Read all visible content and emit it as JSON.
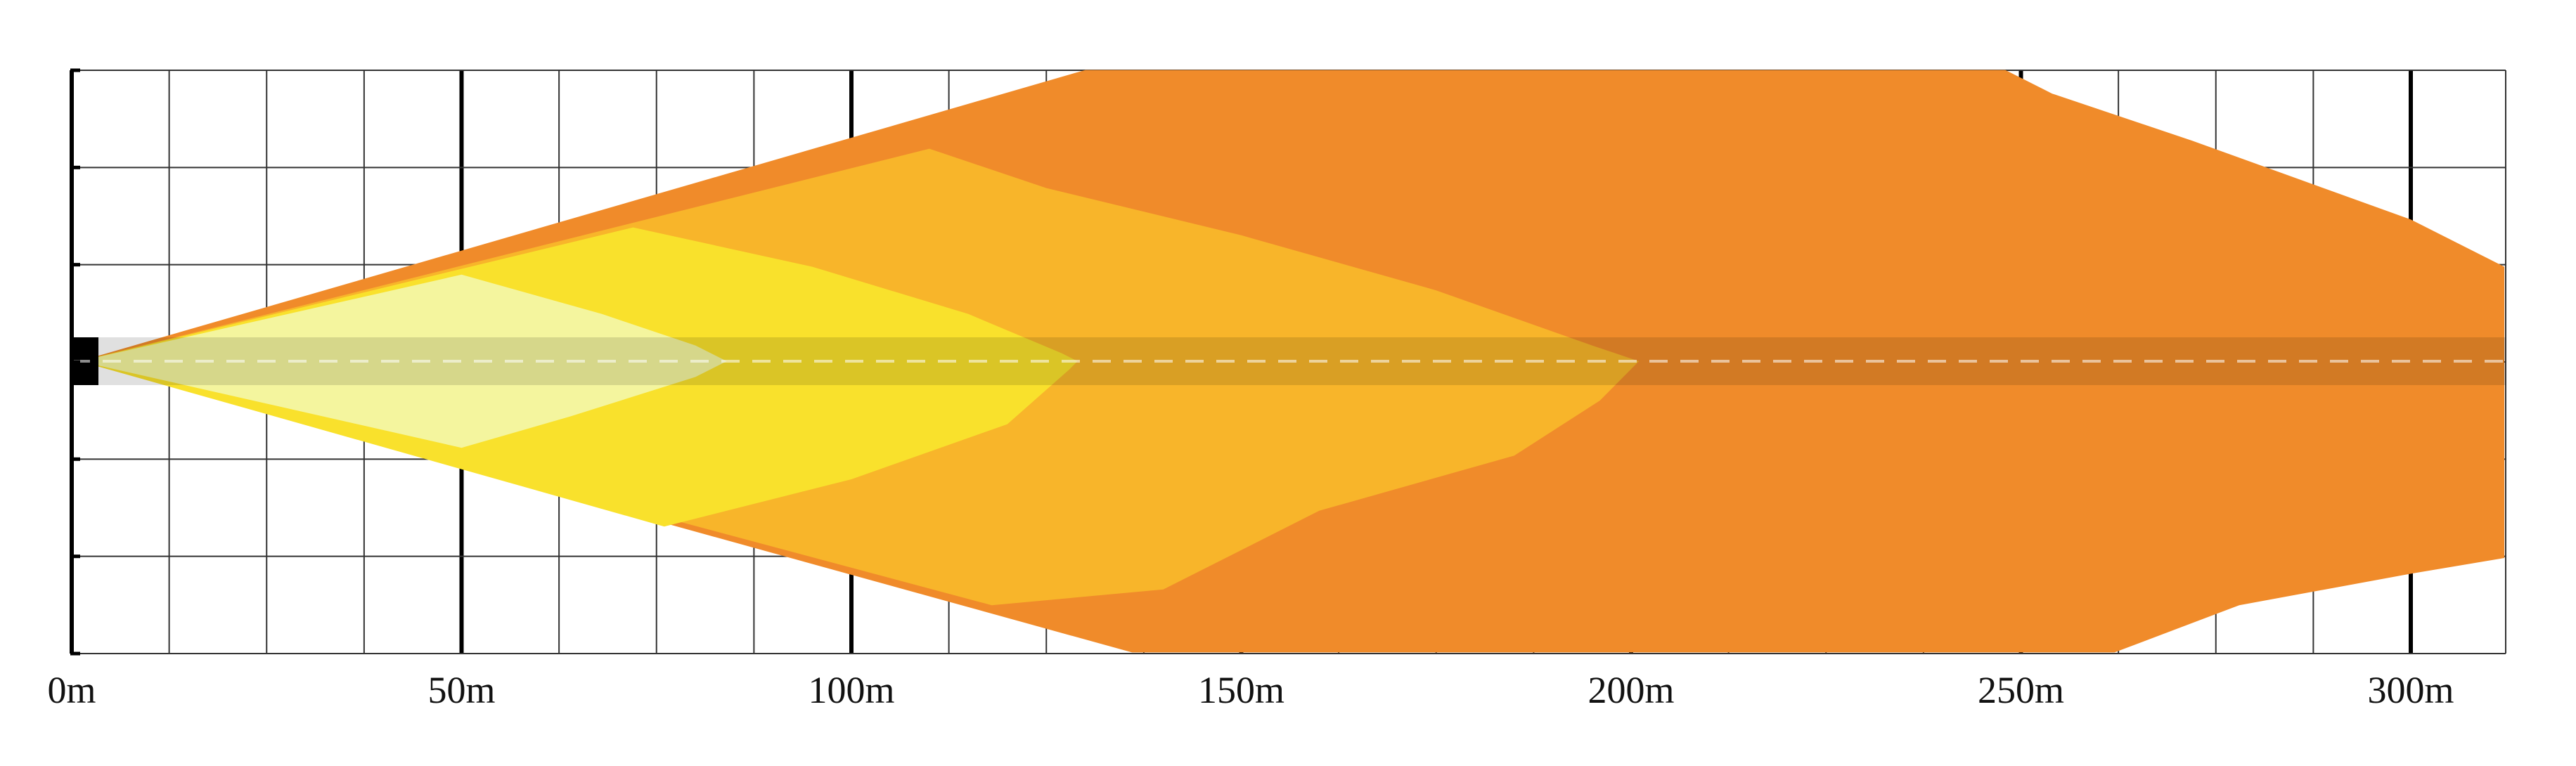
{
  "chart_data": {
    "type": "area",
    "title": "",
    "xlabel": "",
    "ylabel": "",
    "xlim": [
      0,
      312
    ],
    "x_tick_labels": [
      "0m",
      "50m",
      "100m",
      "150m",
      "200m",
      "250m",
      "300m"
    ],
    "x_tick_values": [
      0,
      50,
      100,
      150,
      200,
      250,
      300
    ],
    "grid": true,
    "legend": "none",
    "series": [
      {
        "color": "#F08B2A",
        "max_range": 312,
        "upper": [
          [
            1,
            0
          ],
          [
            130,
            37
          ],
          [
            150,
            37
          ],
          [
            248,
            37
          ],
          [
            254,
            34
          ],
          [
            272,
            28
          ],
          [
            300,
            18
          ],
          [
            312,
            12
          ]
        ],
        "lower": [
          [
            1,
            0
          ],
          [
            136,
            -37
          ],
          [
            262,
            -37
          ],
          [
            278,
            -31
          ],
          [
            300,
            -27
          ],
          [
            312,
            -25
          ]
        ]
      },
      {
        "color": "#F8B52A",
        "max_range": 201,
        "upper": [
          [
            1,
            0
          ],
          [
            110,
            27
          ],
          [
            125,
            22
          ],
          [
            150,
            16
          ],
          [
            175,
            9
          ],
          [
            195,
            2
          ],
          [
            201,
            0
          ]
        ],
        "lower": [
          [
            1,
            0
          ],
          [
            118,
            -31
          ],
          [
            140,
            -29
          ],
          [
            160,
            -19
          ],
          [
            185,
            -12
          ],
          [
            196,
            -5
          ],
          [
            201,
            0
          ]
        ]
      },
      {
        "color": "#F9E12C",
        "max_range": 129,
        "upper": [
          [
            1,
            0
          ],
          [
            72,
            17
          ],
          [
            95,
            12
          ],
          [
            115,
            6
          ],
          [
            127,
            1
          ],
          [
            129,
            0
          ]
        ],
        "lower": [
          [
            1,
            0
          ],
          [
            76,
            -21
          ],
          [
            100,
            -15
          ],
          [
            120,
            -8
          ],
          [
            128,
            -1
          ],
          [
            129,
            0
          ]
        ]
      },
      {
        "color": "#F4F59E",
        "max_range": 84,
        "upper": [
          [
            1,
            0
          ],
          [
            50,
            11
          ],
          [
            68,
            6
          ],
          [
            80,
            2
          ],
          [
            84,
            0
          ]
        ],
        "lower": [
          [
            1,
            0
          ],
          [
            50,
            -11
          ],
          [
            64,
            -7
          ],
          [
            80,
            -2
          ],
          [
            84,
            0
          ]
        ]
      }
    ]
  }
}
